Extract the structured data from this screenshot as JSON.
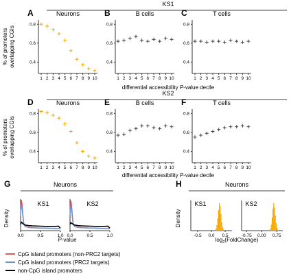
{
  "colors": {
    "neurons_marker": "#f0a500",
    "other_marker": "#444444",
    "hist_fill": "#f5a800",
    "line_nonprc2": "#e8545e",
    "line_prc2": "#6c8fd0",
    "line_noncpg": "#000000"
  },
  "figure": {
    "row1_title": "KS1",
    "row2_title": "KS2",
    "row_ylabel_line1": "% of promoters",
    "row_ylabel_line2": "overlapping CGIs",
    "row_xlabel_prefix": "differential accessibility ",
    "row_xlabel_italic": "P",
    "row_xlabel_suffix": "-value decile",
    "g_header": "Neurons",
    "h_header": "Neurons",
    "g_ylabel": "Density",
    "g_xlabel_italic": "P",
    "g_xlabel_suffix": "-value",
    "h_ylabel": "Density",
    "h_xlabel_main": "log",
    "h_xlabel_sub": "2",
    "h_xlabel_rest": "(FoldChange)"
  },
  "legend": [
    {
      "label": "CpG island promoters (non-PRC2 targets)",
      "color": "#e8545e"
    },
    {
      "label": "CpG island promoters (PRC2 targets)",
      "color": "#6c8fd0"
    },
    {
      "label": "non-CpG island promoters",
      "color": "#000000"
    }
  ],
  "chart_data": [
    {
      "panel": "A",
      "type": "scatter",
      "title": "Neurons",
      "group": "KS1",
      "x": [
        1,
        2,
        3,
        4,
        5,
        6,
        7,
        8,
        9,
        10
      ],
      "y": [
        0.8,
        0.78,
        0.74,
        0.7,
        0.63,
        0.52,
        0.43,
        0.37,
        0.33,
        0.31
      ],
      "xlim": [
        1,
        10
      ],
      "ylim": [
        0.28,
        0.86
      ],
      "xticks": [
        "1",
        "2",
        "3",
        "4",
        "5",
        "6",
        "7",
        "8",
        "9",
        "10"
      ],
      "yticks": [
        "0.4",
        "0.6",
        "0.8"
      ]
    },
    {
      "panel": "B",
      "type": "scatter",
      "title": "B cells",
      "group": "KS1",
      "x": [
        1,
        2,
        3,
        4,
        5,
        6,
        7,
        8,
        9,
        10
      ],
      "y": [
        0.62,
        0.63,
        0.65,
        0.67,
        0.63,
        0.62,
        0.64,
        0.62,
        0.65,
        0.64
      ],
      "xlim": [
        1,
        10
      ],
      "ylim": [
        0.28,
        0.86
      ],
      "xticks": [
        "1",
        "2",
        "3",
        "4",
        "5",
        "6",
        "7",
        "8",
        "9",
        "10"
      ],
      "yticks": [
        "0.4",
        "0.6",
        "0.8"
      ]
    },
    {
      "panel": "C",
      "type": "scatter",
      "title": "T cells",
      "group": "KS1",
      "x": [
        1,
        2,
        3,
        4,
        5,
        6,
        7,
        8,
        9,
        10
      ],
      "y": [
        0.62,
        0.62,
        0.61,
        0.62,
        0.62,
        0.61,
        0.63,
        0.62,
        0.61,
        0.62
      ],
      "xlim": [
        1,
        10
      ],
      "ylim": [
        0.28,
        0.86
      ],
      "xticks": [
        "1",
        "2",
        "3",
        "4",
        "5",
        "6",
        "7",
        "8",
        "9",
        "10"
      ],
      "yticks": [
        "0.4",
        "0.6",
        "0.8"
      ]
    },
    {
      "panel": "D",
      "type": "scatter",
      "title": "Neurons",
      "group": "KS2",
      "x": [
        1,
        2,
        3,
        4,
        5,
        6,
        7,
        8,
        9,
        10
      ],
      "y": [
        0.82,
        0.81,
        0.78,
        0.75,
        0.69,
        0.61,
        0.49,
        0.4,
        0.35,
        0.33
      ],
      "xlim": [
        1,
        10
      ],
      "ylim": [
        0.28,
        0.86
      ],
      "xticks": [
        "1",
        "2",
        "3",
        "4",
        "5",
        "6",
        "7",
        "8",
        "9",
        "10"
      ],
      "yticks": [
        "0.4",
        "0.6",
        "0.8"
      ]
    },
    {
      "panel": "E",
      "type": "scatter",
      "title": "B cells",
      "group": "KS2",
      "x": [
        1,
        2,
        3,
        4,
        5,
        6,
        7,
        8,
        9,
        10
      ],
      "y": [
        0.57,
        0.58,
        0.62,
        0.64,
        0.67,
        0.67,
        0.65,
        0.64,
        0.67,
        0.66
      ],
      "xlim": [
        1,
        10
      ],
      "ylim": [
        0.28,
        0.86
      ],
      "xticks": [
        "1",
        "2",
        "3",
        "4",
        "5",
        "6",
        "7",
        "8",
        "9",
        "10"
      ],
      "yticks": [
        "0.4",
        "0.6",
        "0.8"
      ]
    },
    {
      "panel": "F",
      "type": "scatter",
      "title": "T cells",
      "group": "KS2",
      "x": [
        1,
        2,
        3,
        4,
        5,
        6,
        7,
        8,
        9,
        10
      ],
      "y": [
        0.55,
        0.57,
        0.59,
        0.61,
        0.63,
        0.65,
        0.66,
        0.66,
        0.67,
        0.66
      ],
      "xlim": [
        1,
        10
      ],
      "ylim": [
        0.28,
        0.86
      ],
      "xticks": [
        "1",
        "2",
        "3",
        "4",
        "5",
        "6",
        "7",
        "8",
        "9",
        "10"
      ],
      "yticks": [
        "0.4",
        "0.6",
        "0.8"
      ]
    },
    {
      "panel": "G",
      "type": "line",
      "title": "KS1",
      "xticks": [
        "0.0",
        "0.5",
        "1.0"
      ],
      "xlim": [
        0,
        1
      ],
      "ylim": [
        0,
        6
      ],
      "series": [
        {
          "x": [
            0,
            0.02,
            0.04,
            0.06,
            0.08,
            0.12,
            0.2,
            0.3,
            0.5,
            0.7,
            0.9,
            1.0
          ],
          "y": [
            3.2,
            5.8,
            4.9,
            2.8,
            1.4,
            0.8,
            0.65,
            0.55,
            0.5,
            0.45,
            0.4,
            0.35
          ]
        },
        {
          "x": [
            0,
            0.02,
            0.04,
            0.06,
            0.08,
            0.12,
            0.2,
            0.3,
            0.5,
            0.7,
            0.9,
            1.0
          ],
          "y": [
            2.9,
            5.0,
            4.3,
            2.4,
            1.2,
            0.75,
            0.6,
            0.55,
            0.5,
            0.45,
            0.4,
            0.35
          ]
        },
        {
          "x": [
            0,
            0.02,
            0.05,
            0.1,
            0.2,
            0.3,
            0.5,
            0.7,
            0.85,
            0.95,
            1.0
          ],
          "y": [
            1.2,
            1.6,
            1.4,
            1.1,
            0.95,
            0.9,
            0.85,
            0.8,
            0.8,
            0.85,
            0.5
          ]
        }
      ]
    },
    {
      "panel": "G",
      "type": "line",
      "title": "KS2",
      "xticks": [
        "0.0",
        "0.5",
        "1.0"
      ],
      "xlim": [
        0,
        1
      ],
      "ylim": [
        0,
        6
      ],
      "series": [
        {
          "x": [
            0,
            0.02,
            0.04,
            0.06,
            0.08,
            0.12,
            0.2,
            0.3,
            0.5,
            0.7,
            0.9,
            1.0
          ],
          "y": [
            3.3,
            5.7,
            4.8,
            2.7,
            1.4,
            0.8,
            0.65,
            0.55,
            0.5,
            0.45,
            0.4,
            0.35
          ]
        },
        {
          "x": [
            0,
            0.02,
            0.04,
            0.06,
            0.08,
            0.12,
            0.2,
            0.3,
            0.5,
            0.7,
            0.9,
            1.0
          ],
          "y": [
            3.0,
            4.9,
            4.1,
            2.3,
            1.2,
            0.75,
            0.6,
            0.55,
            0.5,
            0.45,
            0.4,
            0.35
          ]
        },
        {
          "x": [
            0,
            0.02,
            0.05,
            0.1,
            0.2,
            0.3,
            0.5,
            0.7,
            0.85,
            0.95,
            1.0
          ],
          "y": [
            1.2,
            1.5,
            1.35,
            1.1,
            0.95,
            0.9,
            0.85,
            0.8,
            0.8,
            0.85,
            0.5
          ]
        }
      ]
    },
    {
      "panel": "H",
      "type": "bar",
      "title": "KS1",
      "xticks": [
        "-0.5",
        "0.0",
        "0.5"
      ],
      "xlim": [
        -0.75,
        0.75
      ],
      "bin_centers": [
        0.14,
        0.17,
        0.2,
        0.23,
        0.26,
        0.29,
        0.32,
        0.35,
        0.38,
        0.41,
        0.44,
        0.47
      ],
      "values": [
        0.03,
        0.08,
        0.2,
        0.45,
        0.75,
        1.0,
        0.9,
        0.6,
        0.3,
        0.12,
        0.05,
        0.02
      ]
    },
    {
      "panel": "H",
      "type": "bar",
      "title": "KS2",
      "xticks": [
        "-0.75",
        "0.00",
        "0.75"
      ],
      "xlim": [
        -1.0,
        1.05
      ],
      "bin_centers": [
        0.4,
        0.44,
        0.48,
        0.52,
        0.56,
        0.6,
        0.64,
        0.68,
        0.72,
        0.76,
        0.8,
        0.84
      ],
      "values": [
        0.03,
        0.08,
        0.22,
        0.48,
        0.8,
        1.0,
        0.85,
        0.55,
        0.28,
        0.1,
        0.04,
        0.02
      ]
    }
  ]
}
